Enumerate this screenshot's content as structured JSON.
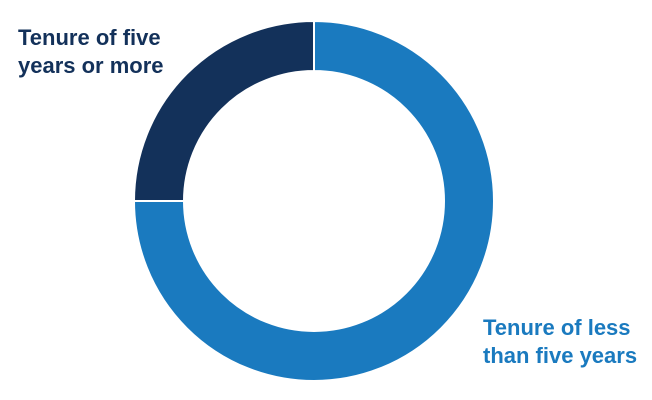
{
  "chart_data": {
    "type": "donut",
    "categories": [
      "Tenure of less than five years",
      "Tenure of five years or more"
    ],
    "values": [
      75,
      25
    ],
    "colors": [
      "#1a7abf",
      "#13315a"
    ]
  }
}
